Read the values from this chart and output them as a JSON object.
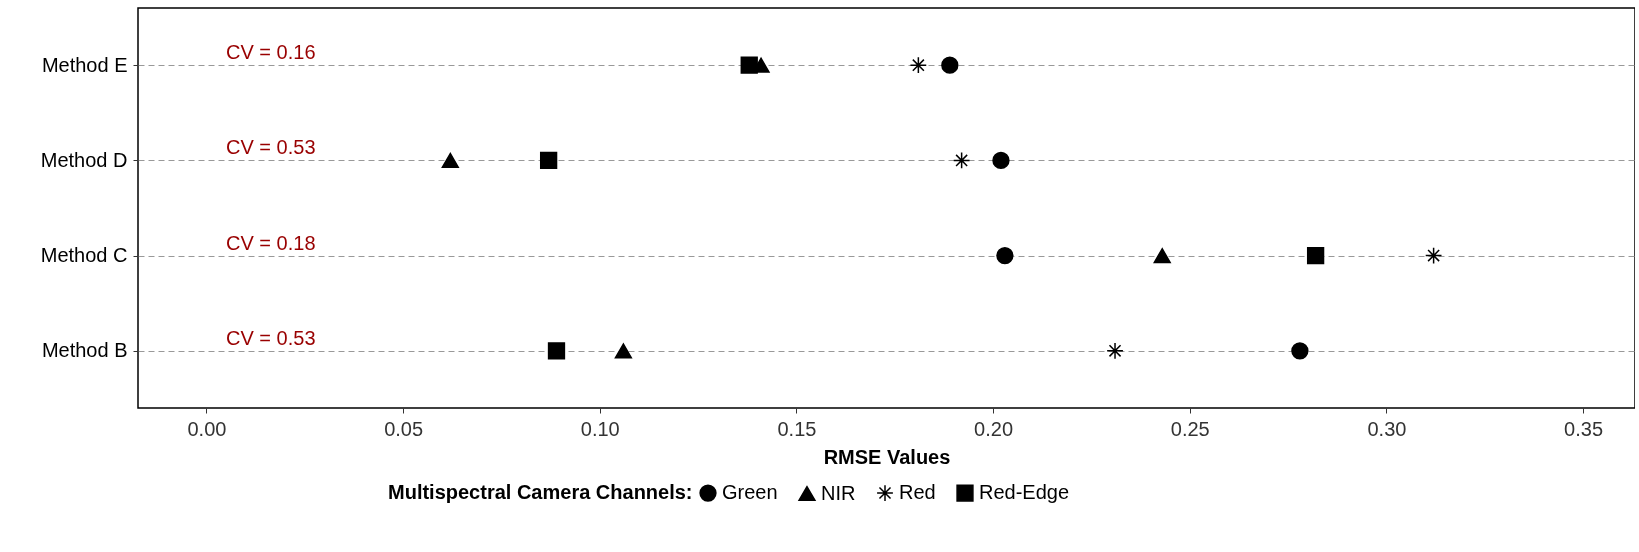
{
  "chart_data": {
    "type": "scatter",
    "orientation": "horizontal",
    "xlabel": "RMSE Values",
    "legend_title": "Multispectral Camera Channels:",
    "legend": "bottom",
    "grid": "y",
    "categories": [
      "Method E",
      "Method D",
      "Method C",
      "Method B"
    ],
    "series": [
      {
        "name": "Green",
        "color": "#000000",
        "marker": "circle",
        "values": [
          0.189,
          0.202,
          0.203,
          0.278
        ]
      },
      {
        "name": "NIR",
        "color": "#000000",
        "marker": "triangle",
        "values": [
          0.141,
          0.062,
          0.243,
          0.106
        ]
      },
      {
        "name": "Red",
        "color": "#000000",
        "marker": "cross",
        "values": [
          0.181,
          0.192,
          0.312,
          0.231
        ]
      },
      {
        "name": "Red-Edge",
        "color": "#000000",
        "marker": "square",
        "values": [
          0.138,
          0.087,
          0.282,
          0.089
        ]
      }
    ],
    "xlim": [
      -0.0174,
      0.3632
    ],
    "xticks": [
      {
        "value": 0,
        "label": "0.00"
      },
      {
        "value": 0.05,
        "label": "0.05"
      },
      {
        "value": 0.1,
        "label": "0.10"
      },
      {
        "value": 0.15,
        "label": "0.15"
      },
      {
        "value": 0.2,
        "label": "0.20"
      },
      {
        "value": 0.25,
        "label": "0.25"
      },
      {
        "value": 0.3,
        "label": "0.30"
      },
      {
        "value": 0.35,
        "label": "0.35"
      }
    ],
    "annotations": [
      "CV = 0.16",
      "CV = 0.53",
      "CV = 0.18",
      "CV = 0.53"
    ]
  }
}
